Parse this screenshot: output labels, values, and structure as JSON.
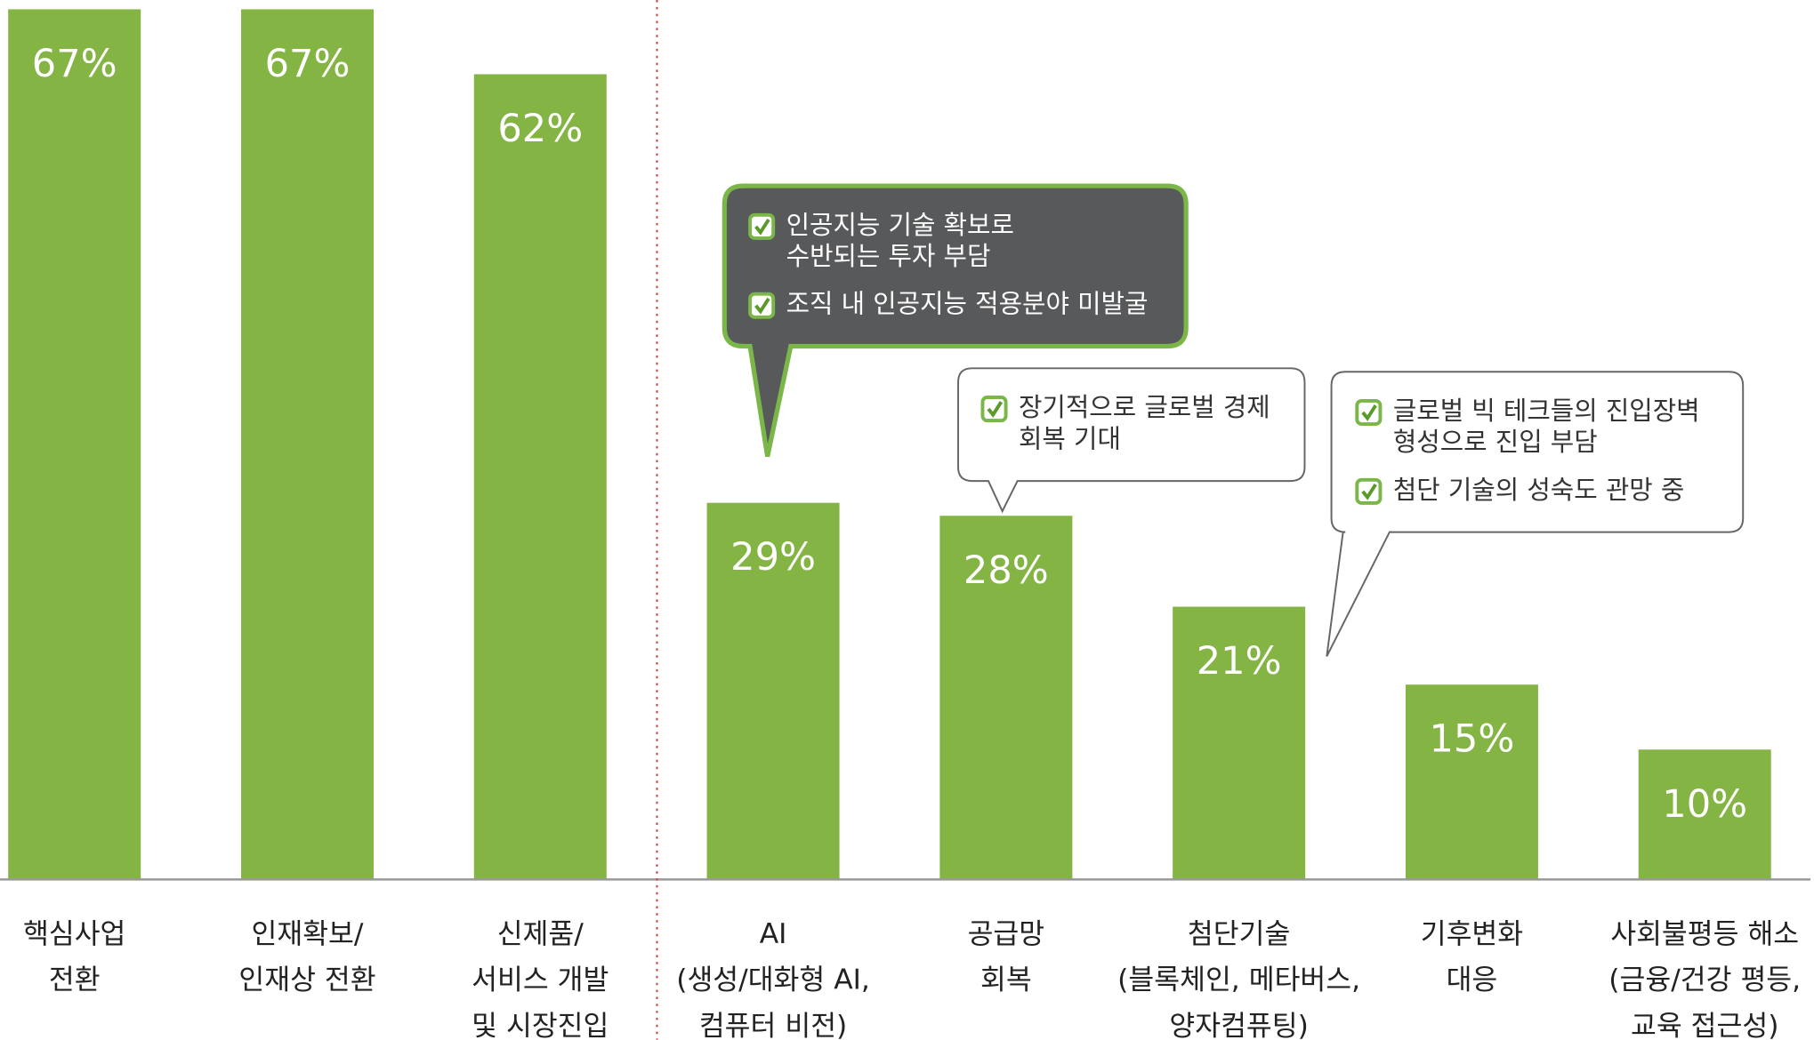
{
  "chart_data": {
    "type": "bar",
    "categories": [
      [
        "핵심사업",
        "전환"
      ],
      [
        "인재확보/",
        "인재상 전환"
      ],
      [
        "신제품/",
        "서비스 개발",
        "및 시장진입"
      ],
      [
        "AI",
        "(생성/대화형 AI,",
        "컴퓨터 비전)"
      ],
      [
        "공급망",
        "회복"
      ],
      [
        "첨단기술",
        "(블록체인, 메타버스,",
        "양자컴퓨팅)"
      ],
      [
        "기후변화",
        "대응"
      ],
      [
        "사회불평등 해소",
        "(금융/건강 평등,",
        "교육 접근성)"
      ]
    ],
    "values": [
      67,
      67,
      62,
      29,
      28,
      21,
      15,
      10
    ],
    "value_labels": [
      "67%",
      "67%",
      "62%",
      "29%",
      "28%",
      "21%",
      "15%",
      "10%"
    ],
    "color": "#84b443",
    "annotations": [
      {
        "items": [
          [
            "인공지능 기술 확보로",
            "수반되는 투자 부담"
          ],
          [
            "조직 내 인공지능 적용분야 미발굴"
          ]
        ]
      },
      {
        "items": [
          [
            "장기적으로 글로벌 경제",
            "회복 기대"
          ]
        ]
      },
      {
        "items": [
          [
            "글로벌 빅 테크들의 진입장벽",
            "형성으로 진입 부담"
          ],
          [
            "첨단 기술의 성숙도 관망 중"
          ]
        ]
      }
    ]
  }
}
